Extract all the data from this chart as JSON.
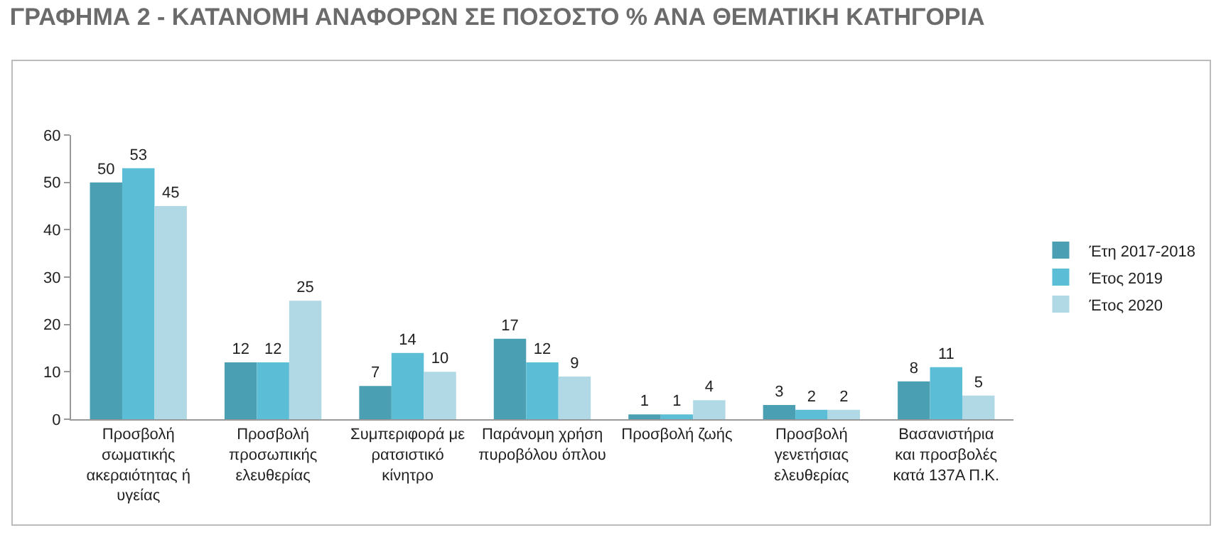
{
  "chart_data": {
    "type": "bar",
    "title": "ΓΡΑΦΗΜΑ 2 - ΚΑΤΑΝΟΜΗ ΑΝΑΦΟΡΩΝ ΣΕ ΠΟΣΟΣΤΟ % ΑΝΑ ΘΕΜΑΤΙΚΗ ΚΑΤΗΓΟΡΙΑ",
    "categories": [
      "Προσβολή σωματικής ακεραιότητας ή υγείας",
      "Προσβολή προσωπικής ελευθερίας",
      "Συμπεριφορά με ρατσιστικό κίνητρο",
      "Παράνομη χρήση πυροβόλου όπλου",
      "Προσβολή ζωής",
      "Προσβολή γενετήσιας ελευθερίας",
      "Βασανιστήρια και προσβολές κατά 137Α Π.Κ."
    ],
    "series": [
      {
        "name": "Έτη 2017-2018",
        "color": "#4a9fb2",
        "values": [
          50,
          12,
          7,
          17,
          1,
          3,
          8
        ]
      },
      {
        "name": "Έτος 2019",
        "color": "#5bbdd6",
        "values": [
          53,
          12,
          14,
          12,
          1,
          2,
          11
        ]
      },
      {
        "name": "Έτος 2020",
        "color": "#b0d9e5",
        "values": [
          45,
          25,
          10,
          9,
          4,
          2,
          5
        ]
      }
    ],
    "ylim": [
      0,
      60
    ],
    "yticks": [
      0,
      10,
      20,
      30,
      40,
      50,
      60
    ],
    "grid": false,
    "legend": "right",
    "data_labels": true
  }
}
